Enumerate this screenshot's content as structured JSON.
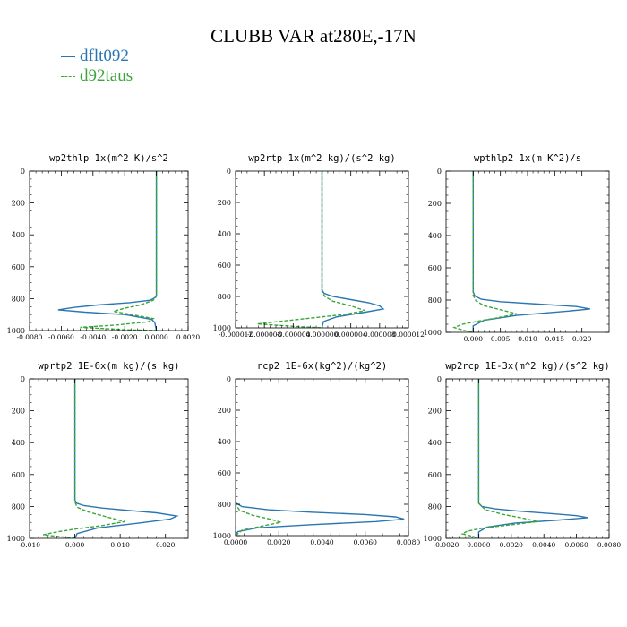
{
  "title": "CLUBB VAR at280E,-17N",
  "legend": [
    {
      "name": "dflt092",
      "color": "#2a76b3",
      "dash": "solid"
    },
    {
      "name": "d92taus",
      "color": "#3aa63a",
      "dash": "dashed"
    }
  ],
  "chart_data": [
    {
      "type": "line",
      "title": "wp2thlp   1x(m^2 K)/s^2",
      "xlim": [
        -0.008,
        0.002
      ],
      "xticks": [
        -0.008,
        -0.006,
        -0.004,
        -0.002,
        0.0,
        0.002
      ],
      "xticklabels": [
        "-0.0080",
        "-0.0060",
        "-0.0040",
        "-0.0020",
        "0.0000",
        "0.0020"
      ],
      "ylim": [
        1000,
        0
      ],
      "yticks": [
        0,
        200,
        400,
        600,
        800,
        1000
      ],
      "series": [
        {
          "name": "dflt092",
          "x": [
            0,
            0,
            -0.0001,
            -0.0004,
            -0.0017,
            -0.0037,
            -0.0052,
            -0.0062,
            -0.0045,
            -0.002,
            -0.0003,
            -0.0001,
            0
          ],
          "y": [
            0,
            780,
            795,
            810,
            825,
            840,
            855,
            870,
            885,
            900,
            930,
            950,
            1000
          ]
        },
        {
          "name": "d92taus",
          "x": [
            0,
            0,
            -0.0002,
            -0.001,
            -0.002,
            -0.0027,
            -0.0013,
            -0.0002,
            -0.0005,
            -0.0025,
            -0.0048,
            -0.002,
            0
          ],
          "y": [
            0,
            785,
            810,
            840,
            860,
            880,
            905,
            925,
            945,
            965,
            980,
            995,
            1000
          ]
        }
      ]
    },
    {
      "type": "line",
      "title": "wp2rtp   1x(m^2 kg)/(s^2 kg)",
      "xlim": [
        -1.2e-05,
        1.2e-05
      ],
      "xticks": [
        -1.2e-05,
        -8e-06,
        -4e-06,
        0.0,
        4e-06,
        8e-06,
        1.2e-05
      ],
      "xticklabels": [
        "-0.000012",
        "-0.000008",
        "-0.000004",
        "0.000000",
        "0.000004",
        "0.000008",
        "0.000012"
      ],
      "ylim": [
        1000,
        0
      ],
      "yticks": [
        0,
        200,
        400,
        600,
        800,
        1000
      ],
      "series": [
        {
          "name": "dflt092",
          "x": [
            0,
            0,
            3e-07,
            1.5e-06,
            4e-06,
            6.5e-06,
            8e-06,
            8.5e-06,
            6e-06,
            2e-06,
            2e-07,
            0
          ],
          "y": [
            0,
            760,
            780,
            800,
            820,
            840,
            860,
            880,
            900,
            930,
            960,
            1000
          ]
        },
        {
          "name": "d92taus",
          "x": [
            0,
            0,
            4e-07,
            1.5e-06,
            4e-06,
            6e-06,
            3e-06,
            -1e-06,
            -5e-06,
            -9e-06,
            -4e-06,
            0
          ],
          "y": [
            0,
            770,
            800,
            830,
            860,
            890,
            915,
            935,
            955,
            975,
            990,
            1000
          ]
        }
      ]
    },
    {
      "type": "line",
      "title": "wpthlp2   1x(m K^2)/s",
      "xlim": [
        -0.005,
        0.025
      ],
      "xticks": [
        0.0,
        0.005,
        0.01,
        0.015,
        0.02
      ],
      "xticklabels": [
        "0.000",
        "0.005",
        "0.010",
        "0.015",
        "0.020"
      ],
      "ylim": [
        1000,
        0
      ],
      "yticks": [
        0,
        200,
        400,
        600,
        800,
        1000
      ],
      "series": [
        {
          "name": "dflt092",
          "x": [
            0,
            0,
            0.0003,
            0.0015,
            0.005,
            0.012,
            0.019,
            0.0215,
            0.017,
            0.008,
            0.002,
            0,
            0
          ],
          "y": [
            0,
            750,
            775,
            795,
            810,
            825,
            840,
            855,
            870,
            895,
            925,
            960,
            1000
          ]
        },
        {
          "name": "d92taus",
          "x": [
            0,
            0,
            0.0005,
            0.002,
            0.005,
            0.008,
            0.0045,
            0.001,
            -0.002,
            -0.0035,
            -0.0015,
            0
          ],
          "y": [
            0,
            770,
            805,
            835,
            860,
            885,
            910,
            930,
            950,
            970,
            990,
            1000
          ]
        }
      ]
    },
    {
      "type": "line",
      "title": "wprtp2   1E-6x(m kg)/(s kg)",
      "xlim": [
        -0.01,
        0.025
      ],
      "xticks": [
        -0.01,
        0.0,
        0.01,
        0.02
      ],
      "xticklabels": [
        "-0.010",
        "0.000",
        "0.010",
        "0.020"
      ],
      "ylim": [
        1000,
        0
      ],
      "yticks": [
        0,
        200,
        400,
        600,
        800,
        1000
      ],
      "series": [
        {
          "name": "dflt092",
          "x": [
            0,
            0,
            0.0004,
            0.002,
            0.006,
            0.012,
            0.018,
            0.0225,
            0.021,
            0.014,
            0.005,
            0.0005,
            0
          ],
          "y": [
            0,
            760,
            780,
            795,
            810,
            825,
            840,
            860,
            880,
            905,
            935,
            970,
            1000
          ]
        },
        {
          "name": "d92taus",
          "x": [
            0,
            0,
            0.0005,
            0.003,
            0.007,
            0.011,
            0.006,
            0.0005,
            -0.004,
            -0.007,
            -0.0025,
            0
          ],
          "y": [
            0,
            770,
            805,
            835,
            865,
            895,
            920,
            940,
            960,
            978,
            992,
            1000
          ]
        }
      ]
    },
    {
      "type": "line",
      "title": "rcp2   1E-6x(kg^2)/(kg^2)",
      "xlim": [
        0.0,
        0.008
      ],
      "xticks": [
        0.0,
        0.002,
        0.004,
        0.006,
        0.008
      ],
      "xticklabels": [
        "0.0000",
        "0.0020",
        "0.0040",
        "0.0060",
        "0.0080"
      ],
      "ylim": [
        1000,
        0
      ],
      "yticks": [
        0,
        200,
        400,
        600,
        800,
        1000
      ],
      "series": [
        {
          "name": "dflt092",
          "x": [
            0,
            0,
            0.0003,
            0.0015,
            0.0035,
            0.006,
            0.0074,
            0.0078,
            0.0065,
            0.0035,
            0.001,
            0.0001,
            0
          ],
          "y": [
            0,
            790,
            815,
            835,
            850,
            865,
            880,
            895,
            910,
            930,
            950,
            975,
            1000
          ]
        },
        {
          "name": "d92taus",
          "x": [
            0,
            0,
            0.0002,
            0.0008,
            0.0016,
            0.0021,
            0.0012,
            0.0003,
            0
          ],
          "y": [
            0,
            800,
            840,
            870,
            895,
            915,
            940,
            965,
            1000
          ]
        }
      ]
    },
    {
      "type": "line",
      "title": "wp2rcp   1E-3x(m^2 kg)/(s^2 kg)",
      "xlim": [
        -0.002,
        0.008
      ],
      "xticks": [
        -0.002,
        0.0,
        0.002,
        0.004,
        0.006,
        0.008
      ],
      "xticklabels": [
        "-0.0020",
        "0.0000",
        "0.0020",
        "0.0040",
        "0.0060",
        "0.0080"
      ],
      "ylim": [
        1000,
        0
      ],
      "yticks": [
        0,
        200,
        400,
        600,
        800,
        1000
      ],
      "series": [
        {
          "name": "dflt092",
          "x": [
            0,
            0,
            0.0002,
            0.001,
            0.0025,
            0.0045,
            0.006,
            0.0067,
            0.005,
            0.0022,
            0.0005,
            0,
            0
          ],
          "y": [
            0,
            780,
            800,
            815,
            830,
            845,
            858,
            870,
            885,
            905,
            930,
            960,
            1000
          ]
        },
        {
          "name": "d92taus",
          "x": [
            0,
            0,
            0.0004,
            0.0015,
            0.0028,
            0.0036,
            0.002,
            0.0003,
            -0.0007,
            -0.001,
            -0.0003,
            0
          ],
          "y": [
            0,
            780,
            820,
            850,
            875,
            895,
            915,
            935,
            955,
            972,
            990,
            1000
          ]
        }
      ]
    }
  ]
}
